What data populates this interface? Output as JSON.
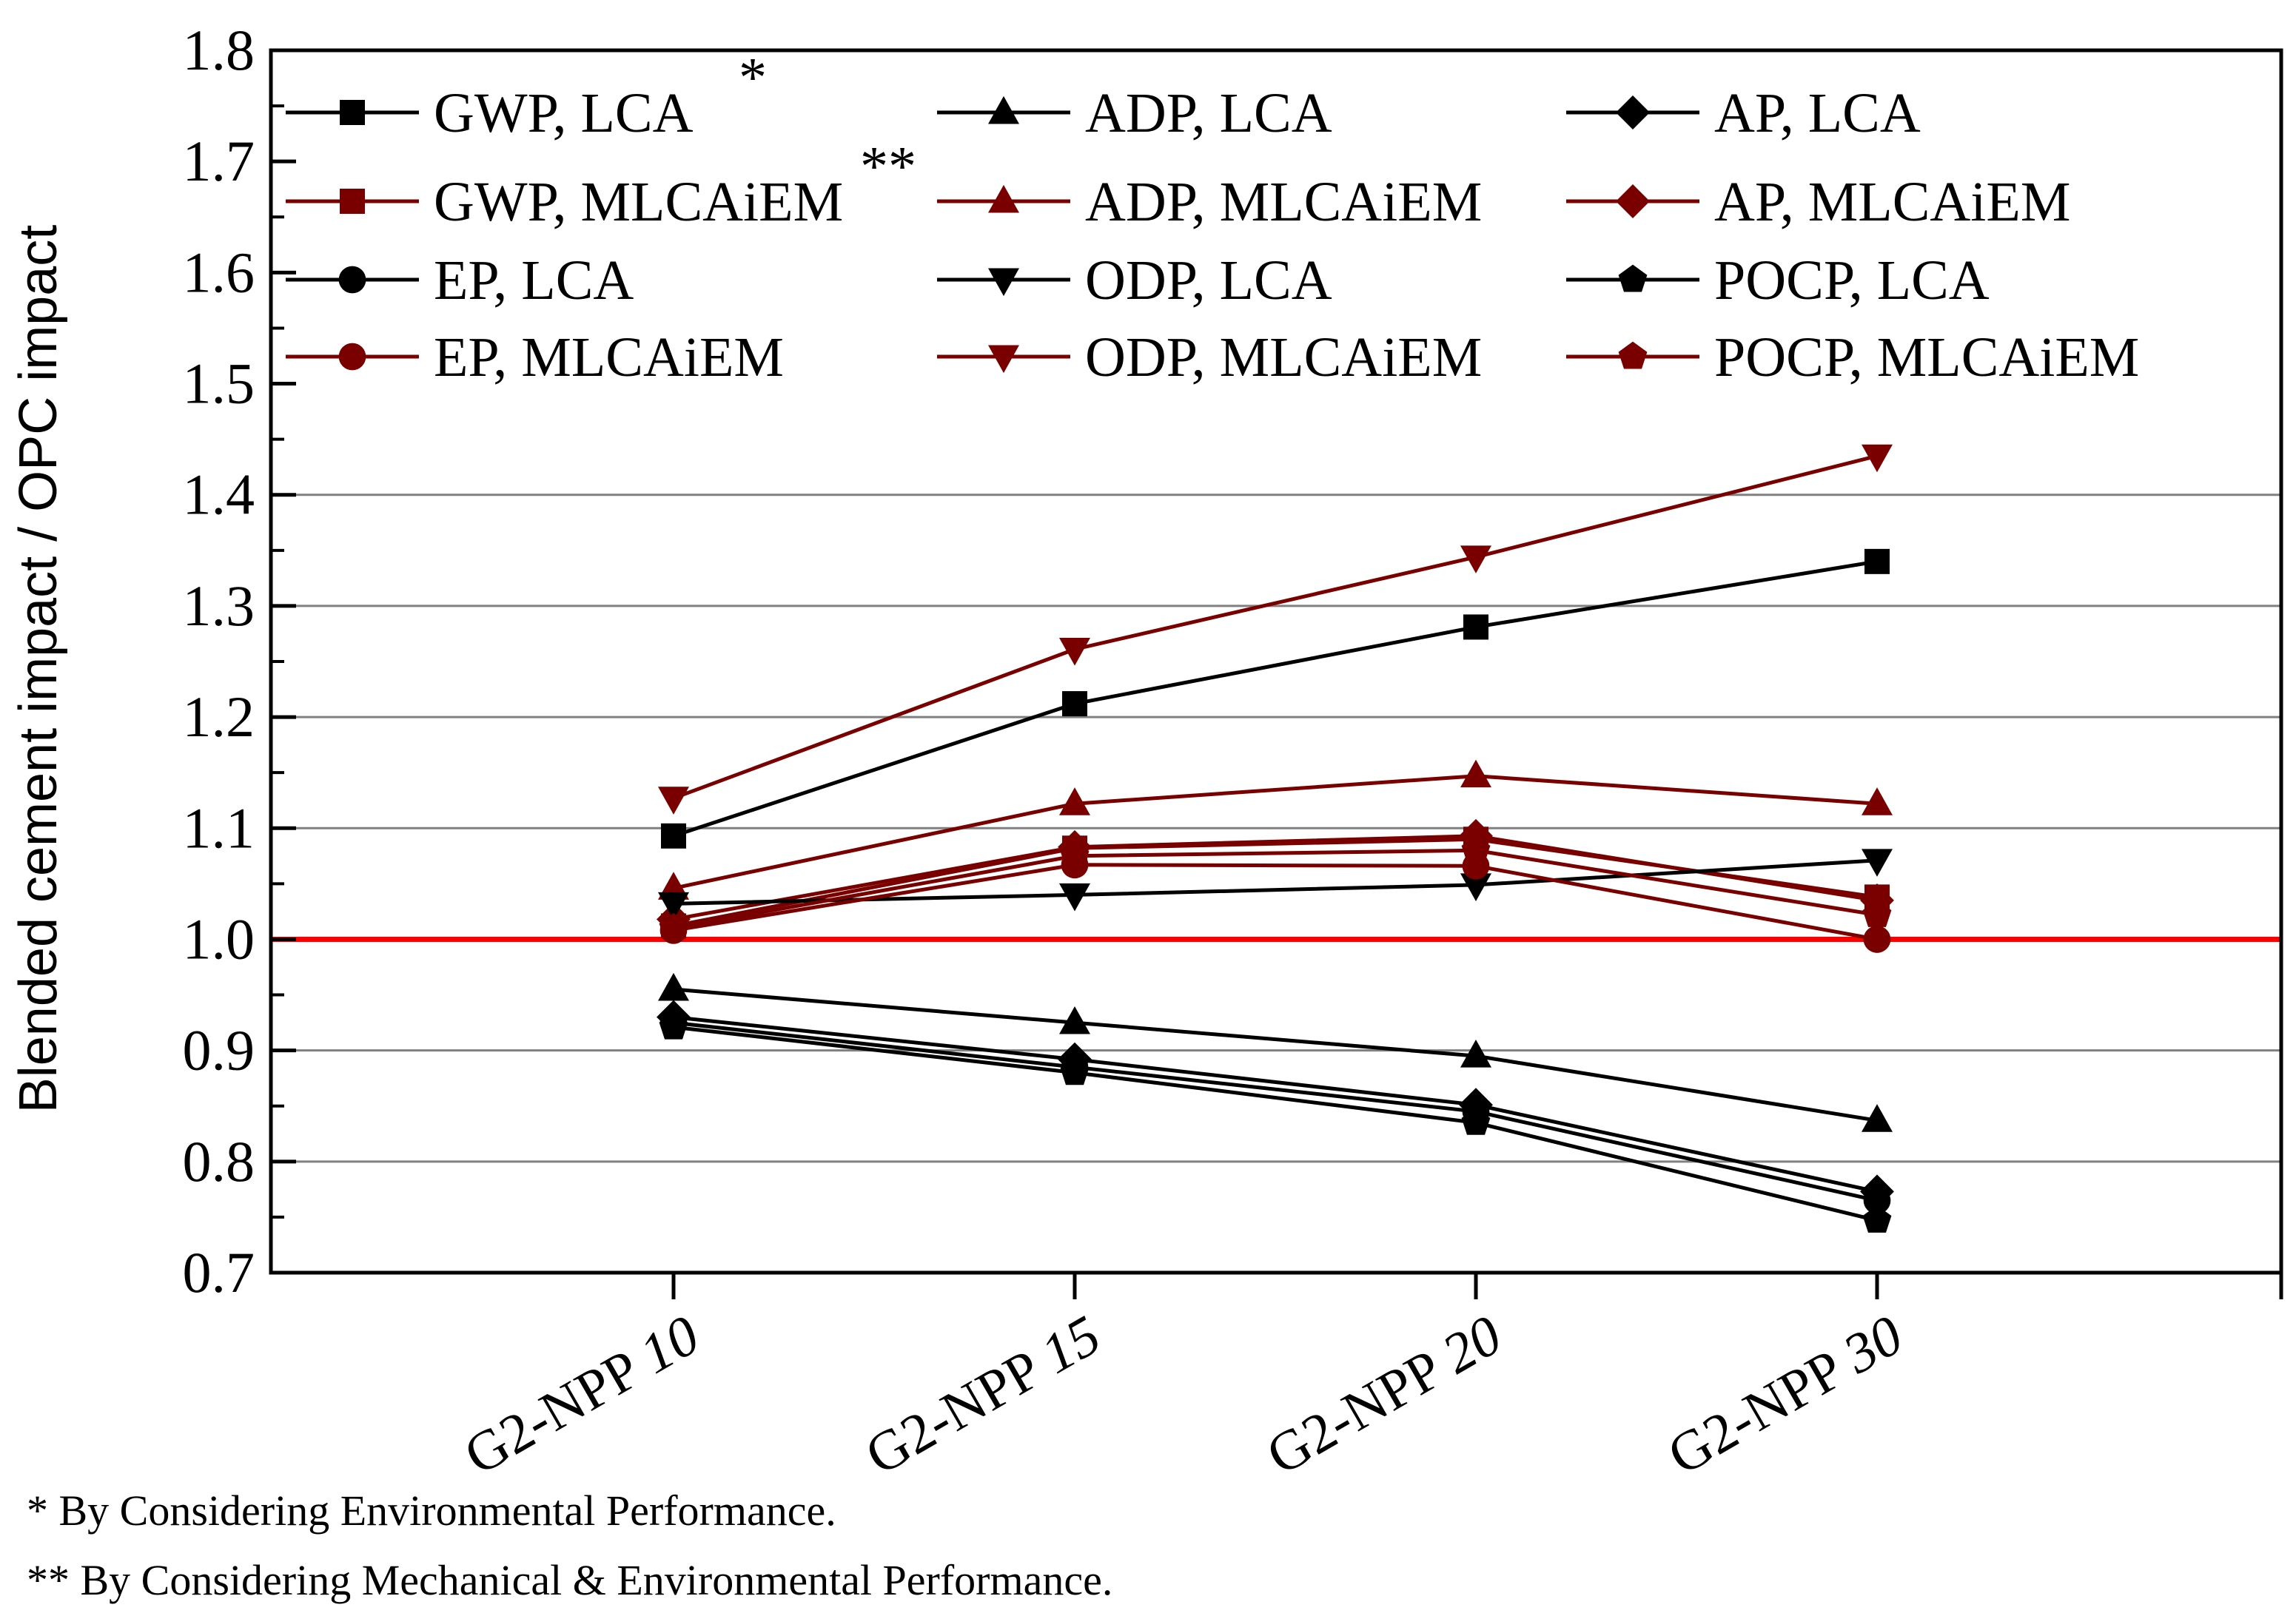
{
  "chart_data": {
    "type": "line",
    "title": "",
    "xlabel": "",
    "ylabel": "Blended cement impact / OPC impact",
    "ylim": [
      0.7,
      1.8
    ],
    "yticks": [
      0.7,
      0.8,
      0.9,
      1.0,
      1.1,
      1.2,
      1.3,
      1.4,
      1.5,
      1.6,
      1.7,
      1.8
    ],
    "ytick_labels": [
      "0.7",
      "0.8",
      "0.9",
      "1.0",
      "1.1",
      "1.2",
      "1.3",
      "1.4",
      "1.5",
      "1.6",
      "1.7",
      "1.8"
    ],
    "categories": [
      {
        "prefix": "G2-NPP ",
        "num": "10"
      },
      {
        "prefix": "G2-NPP ",
        "num": "15"
      },
      {
        "prefix": "G2-NPP ",
        "num": "20"
      },
      {
        "prefix": "G2-NPP ",
        "num": "30"
      }
    ],
    "reference_line": {
      "value": 1.0,
      "color": "#ff0000"
    },
    "grid": "horizontal",
    "legend_position": "top",
    "colors": {
      "lca": "#000000",
      "mlcaiem": "#7a0000",
      "reference": "#ff0000",
      "grid": "#808080"
    },
    "series": [
      {
        "name": "GWP, LCA",
        "marker": "square",
        "group": "lca",
        "values": [
          1.093,
          1.212,
          1.281,
          1.34
        ]
      },
      {
        "name": "ADP, LCA",
        "marker": "triangle-up",
        "group": "lca",
        "values": [
          0.955,
          0.925,
          0.895,
          0.837
        ]
      },
      {
        "name": "AP, LCA",
        "marker": "diamond",
        "group": "lca",
        "values": [
          0.93,
          0.892,
          0.851,
          0.773
        ]
      },
      {
        "name": "GWP, MLCAiEM",
        "marker": "square",
        "group": "mlcaiem",
        "values": [
          1.012,
          1.082,
          1.09,
          1.038
        ]
      },
      {
        "name": "ADP, MLCAiEM",
        "marker": "triangle-up",
        "group": "mlcaiem",
        "values": [
          1.046,
          1.122,
          1.147,
          1.122
        ]
      },
      {
        "name": "AP, MLCAiEM",
        "marker": "diamond",
        "group": "mlcaiem",
        "values": [
          1.018,
          1.083,
          1.093,
          1.035
        ]
      },
      {
        "name": "EP, LCA",
        "marker": "circle",
        "group": "lca",
        "values": [
          0.925,
          0.885,
          0.845,
          0.765
        ]
      },
      {
        "name": "ODP, LCA",
        "marker": "triangle-down",
        "group": "lca",
        "values": [
          1.032,
          1.04,
          1.049,
          1.071
        ]
      },
      {
        "name": "POCP, LCA",
        "marker": "pentagon",
        "group": "lca",
        "values": [
          0.921,
          0.88,
          0.835,
          0.747
        ]
      },
      {
        "name": "EP, MLCAiEM",
        "marker": "circle",
        "group": "mlcaiem",
        "values": [
          1.008,
          1.067,
          1.066,
          1.0
        ]
      },
      {
        "name": "ODP, MLCAiEM",
        "marker": "triangle-down",
        "group": "mlcaiem",
        "values": [
          1.127,
          1.261,
          1.344,
          1.435
        ]
      },
      {
        "name": "POCP, MLCAiEM",
        "marker": "pentagon",
        "group": "mlcaiem",
        "values": [
          1.01,
          1.075,
          1.08,
          1.022
        ]
      }
    ],
    "annotations": [
      {
        "text": "*",
        "near": "GWP, LCA"
      },
      {
        "text": "**",
        "near": "GWP, MLCAiEM"
      }
    ]
  },
  "footnotes": [
    "*   By Considering Environmental Performance.",
    "** By Considering Mechanical & Environmental Performance."
  ]
}
